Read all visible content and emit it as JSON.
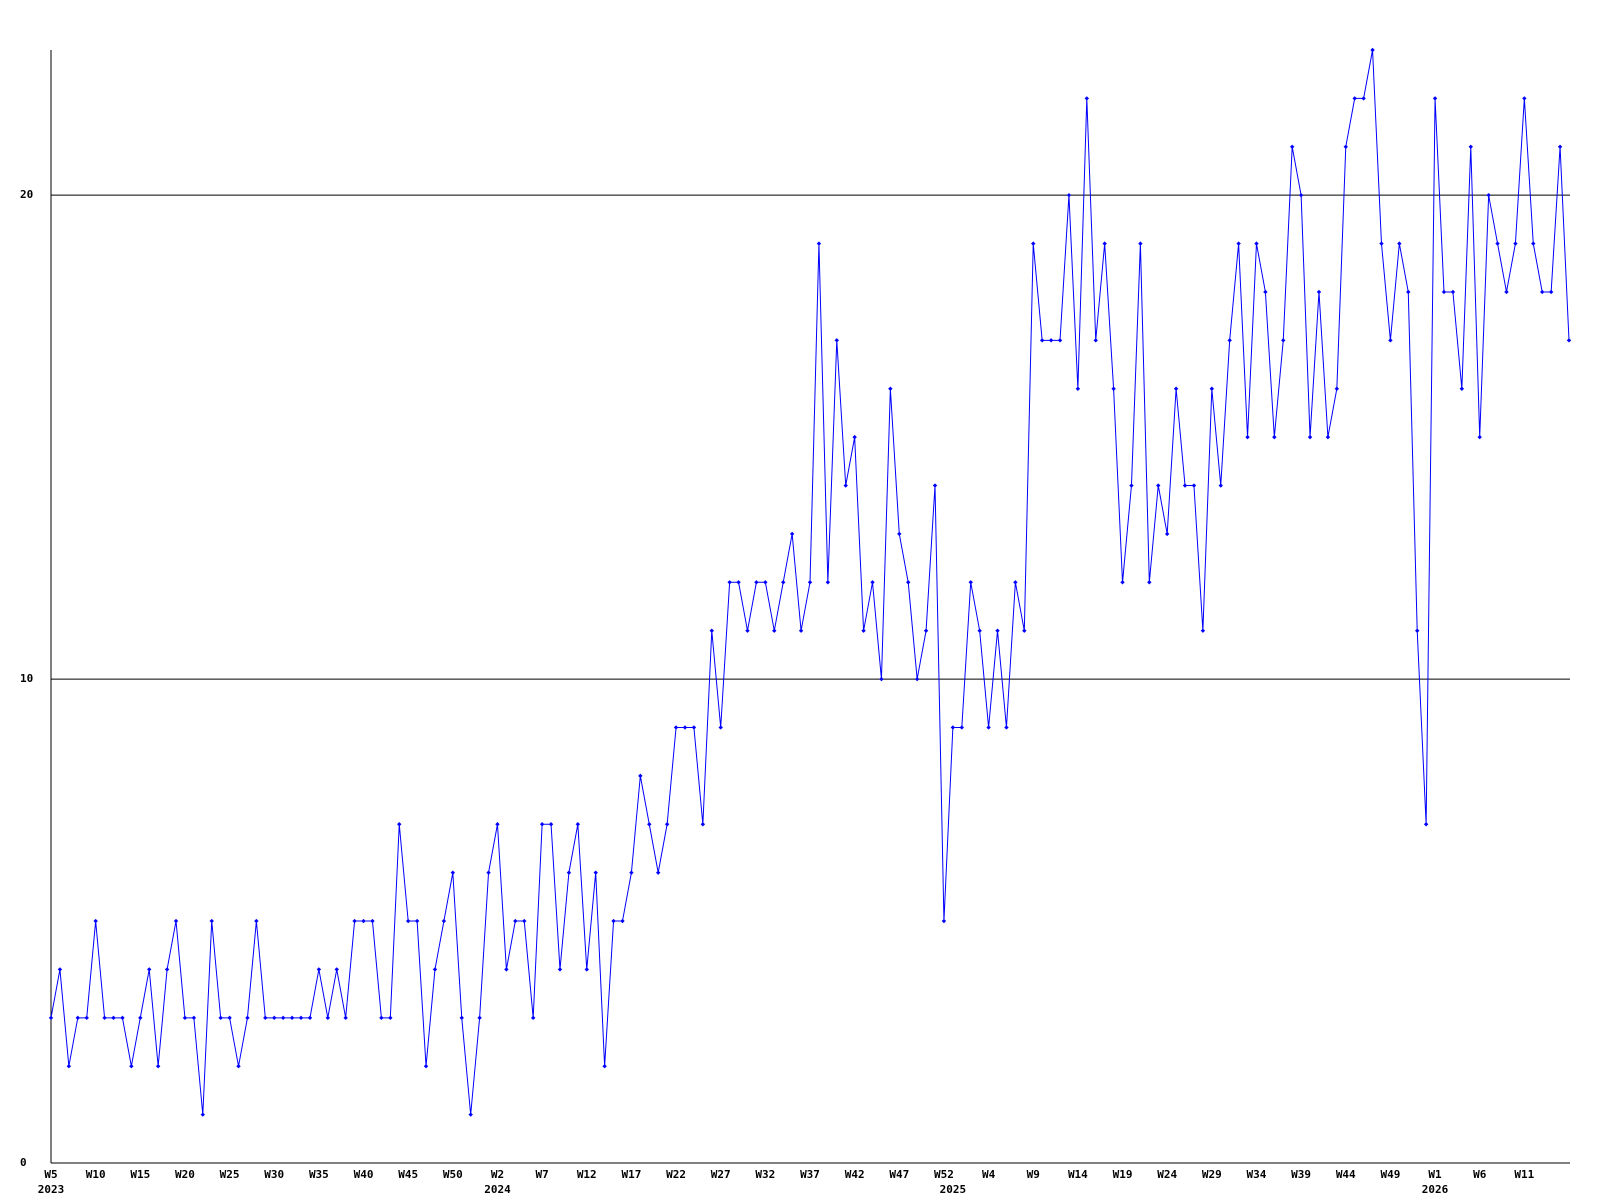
{
  "chart_data": {
    "type": "line",
    "color": "#0000ff",
    "grid": true,
    "ylim": [
      0,
      23
    ],
    "yticks": [
      0,
      10,
      20
    ],
    "categories": [
      "W5",
      null,
      null,
      null,
      null,
      "W10",
      null,
      null,
      null,
      null,
      "W15",
      null,
      null,
      null,
      null,
      "W20",
      null,
      null,
      null,
      null,
      "W25",
      null,
      null,
      null,
      null,
      "W30",
      null,
      null,
      null,
      null,
      "W35",
      null,
      null,
      null,
      null,
      "W40",
      null,
      null,
      null,
      null,
      "W45",
      null,
      null,
      null,
      null,
      "W50",
      null,
      null,
      null,
      null,
      "W2",
      null,
      null,
      null,
      null,
      "W7",
      null,
      null,
      null,
      null,
      "W12",
      null,
      null,
      null,
      null,
      "W17",
      null,
      null,
      null,
      null,
      "W22",
      null,
      null,
      null,
      null,
      "W27",
      null,
      null,
      null,
      null,
      "W32",
      null,
      null,
      null,
      null,
      "W37",
      null,
      null,
      null,
      null,
      "W42",
      null,
      null,
      null,
      null,
      "W47",
      null,
      null,
      null,
      null,
      "W52",
      null,
      null,
      null,
      null,
      "W4",
      null,
      null,
      null,
      null,
      "W9",
      null,
      null,
      null,
      null,
      "W14",
      null,
      null,
      null,
      null,
      "W19",
      null,
      null,
      null,
      null,
      "W24",
      null,
      null,
      null,
      null,
      "W29",
      null,
      null,
      null,
      null,
      "W34",
      null,
      null,
      null,
      null,
      "W39",
      null,
      null,
      null,
      null,
      "W44",
      null,
      null,
      null,
      null,
      "W49",
      null,
      null,
      null,
      null,
      "W1",
      null,
      null,
      null,
      null,
      "W6",
      null,
      null,
      null,
      null,
      "W11",
      null,
      null,
      null,
      null,
      null
    ],
    "year_labels": [
      "2023",
      null,
      null,
      null,
      null,
      null,
      null,
      null,
      null,
      null,
      null,
      null,
      null,
      null,
      null,
      null,
      null,
      null,
      null,
      null,
      null,
      null,
      null,
      null,
      null,
      null,
      null,
      null,
      null,
      null,
      null,
      null,
      null,
      null,
      null,
      null,
      null,
      null,
      null,
      null,
      null,
      null,
      null,
      null,
      null,
      null,
      null,
      null,
      null,
      null,
      "2024",
      null,
      null,
      null,
      null,
      null,
      null,
      null,
      null,
      null,
      null,
      null,
      null,
      null,
      null,
      null,
      null,
      null,
      null,
      null,
      null,
      null,
      null,
      null,
      null,
      null,
      null,
      null,
      null,
      null,
      null,
      null,
      null,
      null,
      null,
      null,
      null,
      null,
      null,
      null,
      null,
      null,
      null,
      null,
      null,
      null,
      null,
      null,
      null,
      null,
      null,
      "2025",
      null,
      null,
      null,
      null,
      null,
      null,
      null,
      null,
      null,
      null,
      null,
      null,
      null,
      null,
      null,
      null,
      null,
      null,
      null,
      null,
      null,
      null,
      null,
      null,
      null,
      null,
      null,
      null,
      null,
      null,
      null,
      null,
      null,
      null,
      null,
      null,
      null,
      null,
      null,
      null,
      null,
      null,
      null,
      null,
      null,
      null,
      null,
      null,
      null,
      null,
      null,
      null,
      null,
      "2026",
      null,
      null,
      null,
      null,
      null,
      null,
      null,
      null,
      null,
      null,
      null,
      null,
      null,
      null,
      null
    ],
    "values": [
      3,
      4,
      2,
      3,
      3,
      5,
      3,
      3,
      3,
      2,
      3,
      4,
      2,
      4,
      5,
      3,
      3,
      1,
      5,
      3,
      3,
      2,
      3,
      5,
      3,
      3,
      3,
      3,
      3,
      3,
      4,
      3,
      4,
      3,
      5,
      5,
      5,
      3,
      3,
      7,
      5,
      5,
      2,
      4,
      5,
      6,
      3,
      1,
      3,
      6,
      7,
      4,
      5,
      5,
      3,
      7,
      7,
      4,
      6,
      7,
      4,
      6,
      2,
      5,
      5,
      6,
      8,
      7,
      6,
      7,
      9,
      9,
      9,
      7,
      11,
      9,
      12,
      12,
      11,
      12,
      12,
      11,
      12,
      13,
      11,
      12,
      19,
      12,
      17,
      14,
      15,
      11,
      12,
      10,
      16,
      13,
      12,
      10,
      11,
      14,
      5,
      9,
      9,
      12,
      11,
      9,
      11,
      9,
      12,
      11,
      19,
      17,
      17,
      17,
      20,
      16,
      22,
      17,
      19,
      16,
      12,
      14,
      19,
      12,
      14,
      13,
      16,
      14,
      14,
      11,
      16,
      14,
      17,
      19,
      15,
      19,
      18,
      15,
      17,
      21,
      20,
      15,
      18,
      15,
      16,
      21,
      22,
      22,
      23,
      19,
      17,
      19,
      18,
      11,
      7,
      22,
      18,
      18,
      16,
      21,
      15,
      20,
      19,
      18,
      19,
      22,
      19,
      18,
      18,
      21,
      17
    ]
  }
}
